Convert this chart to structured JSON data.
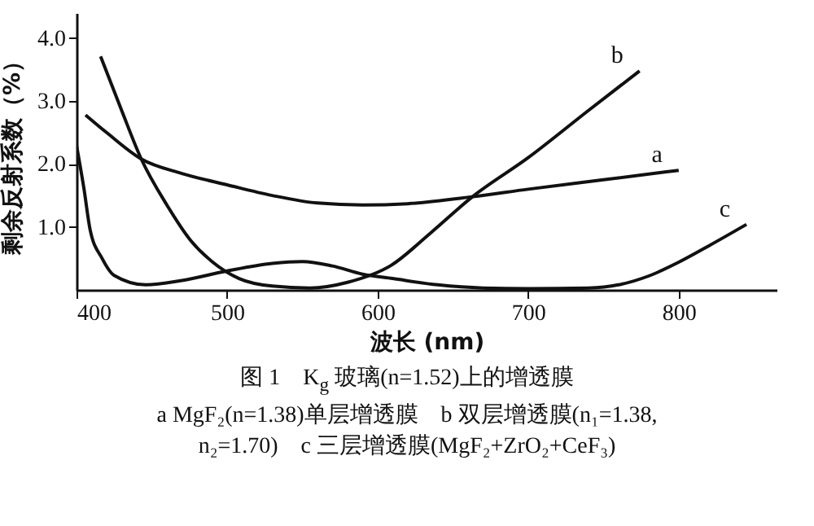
{
  "chart_data": {
    "type": "line",
    "title": "图 1　K$_{g}$ 玻璃(n=1.52)上的增透膜",
    "subtitle": "a MgF₂(n=1.38)单层增透膜　b 双层增透膜(n₁=1.38,\nn₂=1.70)　c 三层增透膜(MgF₂+ZrO₂+CeF₃)",
    "xlabel": "波长 (nm)",
    "ylabel": "剩余反射系数（%）",
    "xlim": [
      400,
      865
    ],
    "xticks": [
      400,
      500,
      600,
      700,
      800
    ],
    "ylim": [
      0,
      4.4
    ],
    "yticks": [
      {
        "value": 1,
        "label": "1.0"
      },
      {
        "value": 2,
        "label": "2.0"
      },
      {
        "value": 3,
        "label": "3.0"
      },
      {
        "value": 4,
        "label": "4.0"
      }
    ],
    "grid": false,
    "legend": false,
    "marker": "none",
    "line_style": "solid",
    "series": [
      {
        "name": "a",
        "color": "#111111",
        "x": [
          406,
          420,
          443,
          470,
          500,
          530,
          560,
          590,
          620,
          663,
          700,
          750,
          800
        ],
        "values": [
          2.78,
          2.5,
          2.08,
          1.85,
          1.67,
          1.5,
          1.38,
          1.35,
          1.37,
          1.48,
          1.6,
          1.75,
          1.9
        ]
      },
      {
        "name": "b",
        "color": "#111111",
        "x": [
          416,
          430,
          443,
          460,
          476,
          490,
          508,
          530,
          555,
          580,
          609,
          635,
          663,
          700,
          740,
          774
        ],
        "values": [
          3.71,
          2.85,
          2.08,
          1.35,
          0.78,
          0.45,
          0.18,
          0.06,
          0.03,
          0.12,
          0.39,
          0.9,
          1.48,
          2.1,
          2.85,
          3.48
        ]
      },
      {
        "name": "c",
        "color": "#111111",
        "x": [
          400,
          405,
          409,
          417,
          425,
          446,
          470,
          500,
          530,
          550,
          570,
          590,
          610,
          640,
          670,
          700,
          740,
          760,
          780,
          800,
          820,
          845
        ],
        "values": [
          2.3,
          1.6,
          0.96,
          0.5,
          0.23,
          0.08,
          0.15,
          0.3,
          0.42,
          0.45,
          0.38,
          0.25,
          0.18,
          0.08,
          0.03,
          0.02,
          0.03,
          0.08,
          0.22,
          0.44,
          0.7,
          1.04
        ]
      }
    ]
  }
}
